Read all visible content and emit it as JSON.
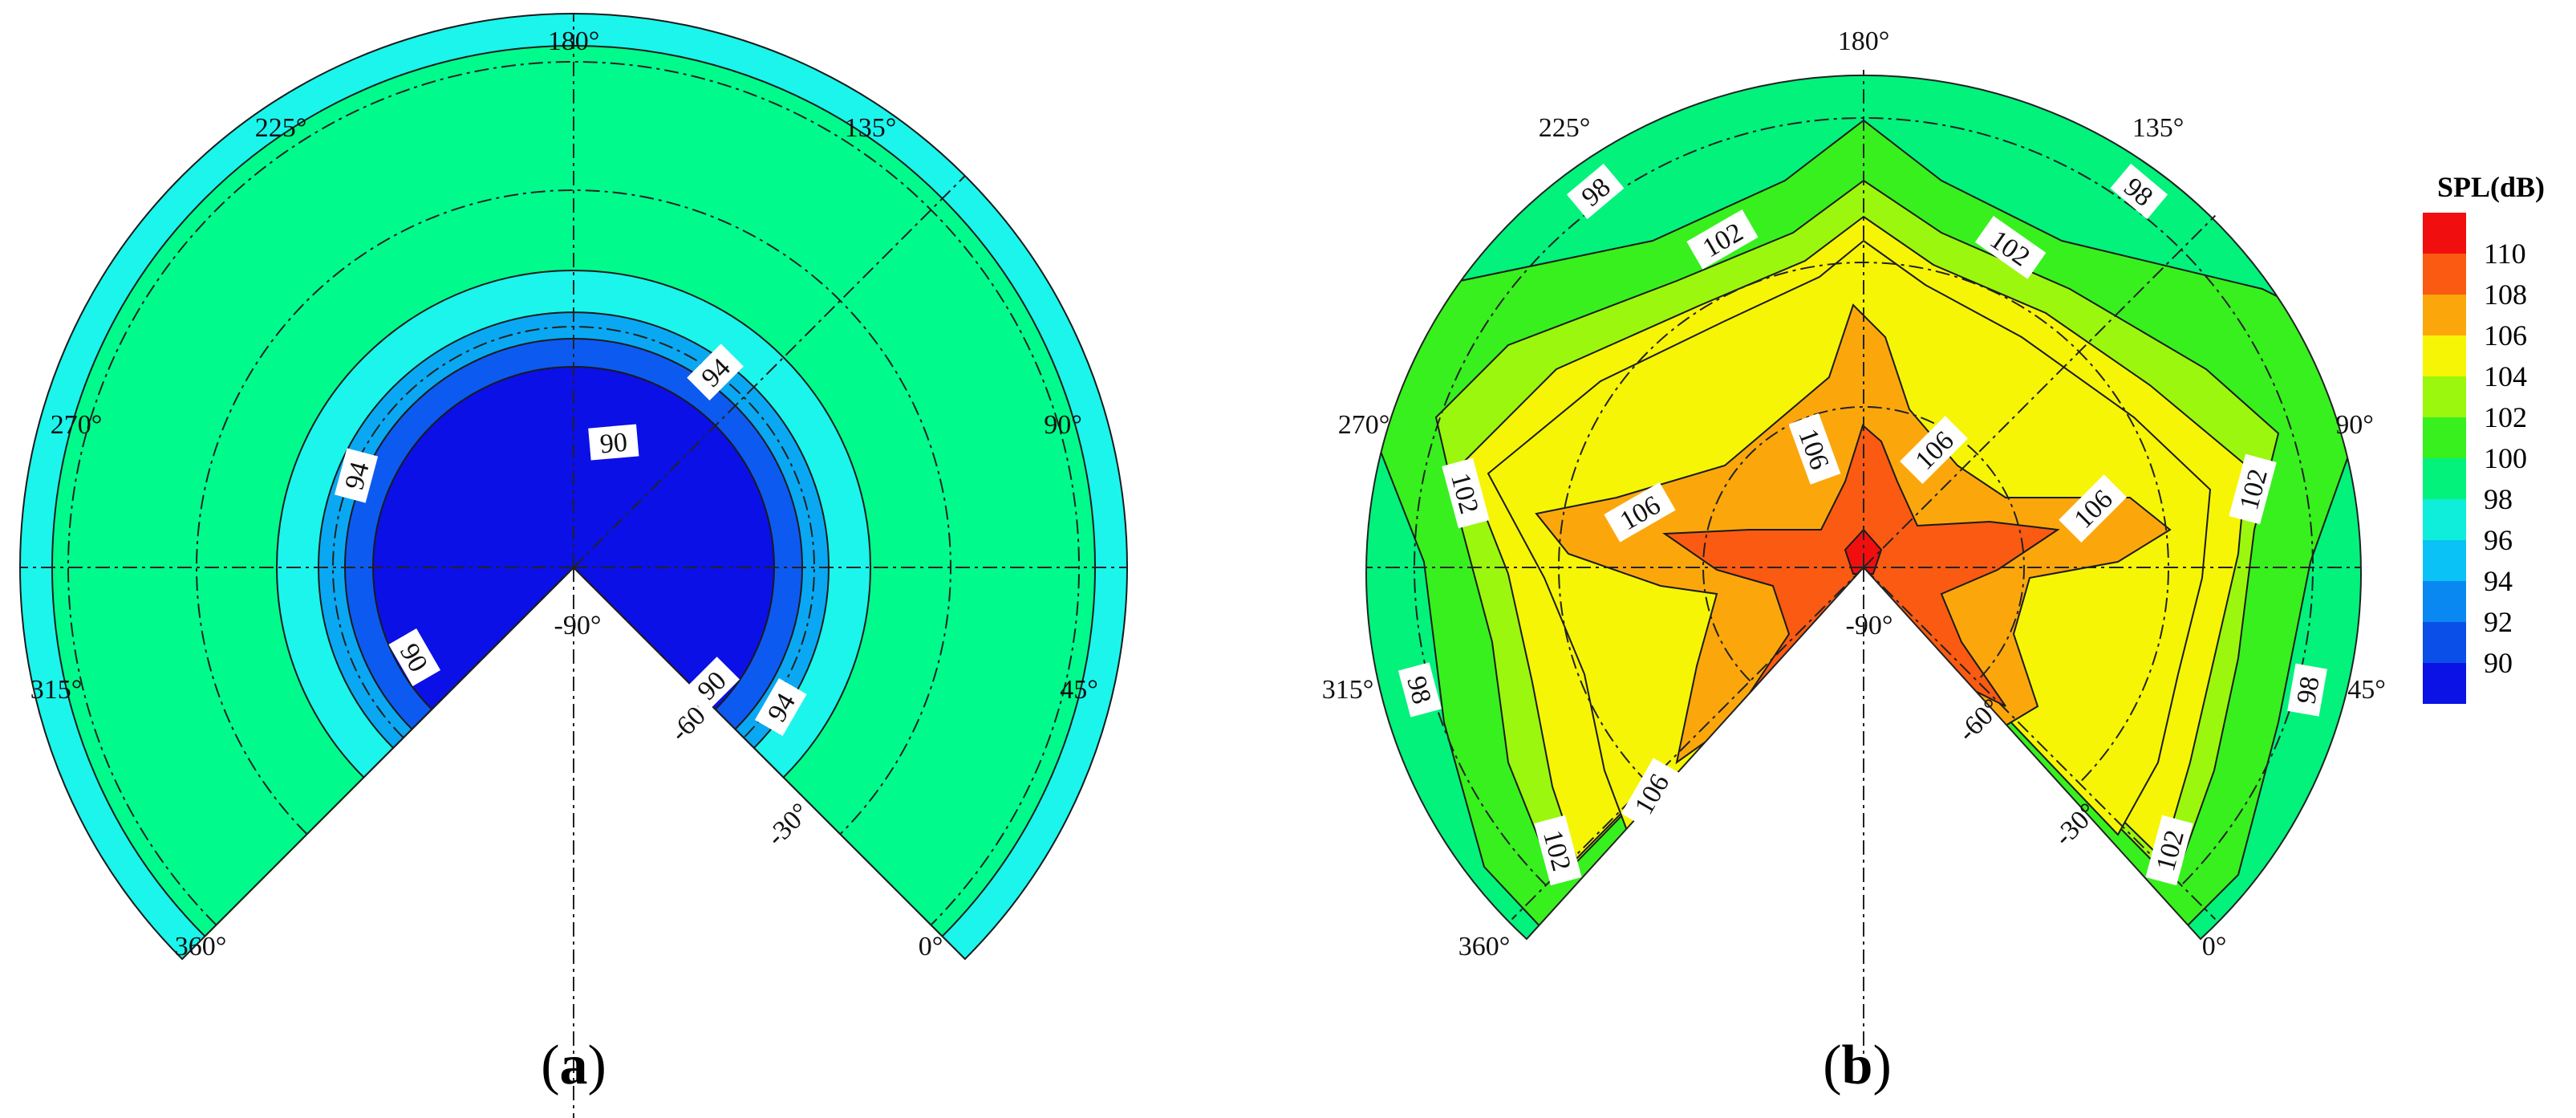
{
  "chart_data": [
    {
      "type": "polar-contour",
      "panel_label": "a",
      "angle_ticks": [
        "0°",
        "45°",
        "90°",
        "135°",
        "180°",
        "225°",
        "270°",
        "315°",
        "360°",
        "-30°",
        "-60°",
        "-90°"
      ],
      "contour_bands": [
        {
          "min": 90,
          "max": 92,
          "color": "#0A10E6"
        },
        {
          "min": 92,
          "max": 94,
          "color": "#0D5AF0"
        },
        {
          "min": 94,
          "max": 96,
          "color": "#0AA8F2"
        },
        {
          "min": 96,
          "max": 98,
          "color": "#1BF5EC"
        },
        {
          "min": 98,
          "max": 100,
          "color": "#00FB8C"
        },
        {
          "min": 96,
          "max": 98,
          "color": "#1BF5EC"
        }
      ],
      "contour_labels": [
        "90",
        "94",
        "94",
        "90",
        "90",
        "94"
      ]
    },
    {
      "type": "polar-contour",
      "panel_label": "b",
      "angle_ticks": [
        "0°",
        "45°",
        "90°",
        "135°",
        "180°",
        "225°",
        "270°",
        "315°",
        "360°",
        "-30°",
        "-60°",
        "-90°"
      ],
      "contour_levels": [
        110,
        108,
        106,
        104,
        102,
        100,
        98
      ],
      "contour_labels": [
        "98",
        "102",
        "102",
        "98",
        "106",
        "106",
        "102",
        "106",
        "106",
        "102",
        "98",
        "98",
        "102",
        "106",
        "102"
      ]
    }
  ],
  "colorbar": {
    "title": "SPL(dB)",
    "levels": [
      {
        "label": "110",
        "color": "#F10E0E"
      },
      {
        "label": "108",
        "color": "#FA5A11"
      },
      {
        "label": "106",
        "color": "#FBA70C"
      },
      {
        "label": "104",
        "color": "#F6F505"
      },
      {
        "label": "102",
        "color": "#9BF70D"
      },
      {
        "label": "100",
        "color": "#38F01E"
      },
      {
        "label": "98",
        "color": "#02F27C"
      },
      {
        "label": "96",
        "color": "#0FEDDB"
      },
      {
        "label": "94",
        "color": "#0AC2F5"
      },
      {
        "label": "92",
        "color": "#0A88F2"
      },
      {
        "label": "90",
        "color": "#0A50E8"
      },
      {
        "label": "",
        "color": "#0A12E6"
      }
    ]
  }
}
